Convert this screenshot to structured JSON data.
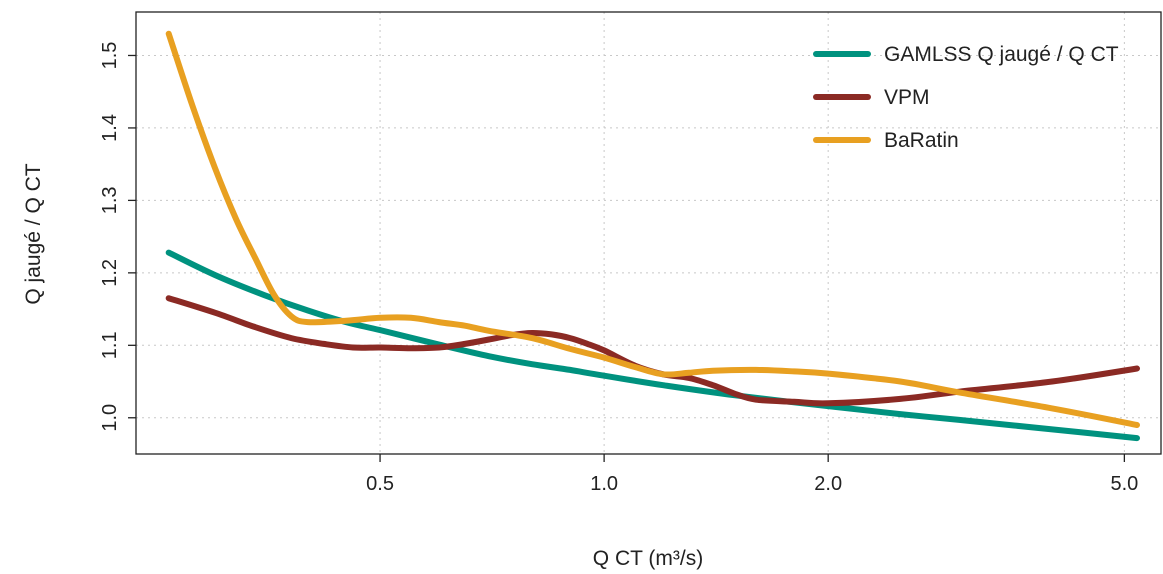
{
  "chart_data": {
    "type": "line",
    "xlabel": "Q CT (m³/s)",
    "ylabel": "Q jaugé / Q CT",
    "xscale": "log",
    "xlim": [
      0.235,
      5.6
    ],
    "ylim": [
      0.95,
      1.56
    ],
    "xticks": [
      0.5,
      1.0,
      2.0,
      5.0
    ],
    "xtick_labels": [
      "0.5",
      "1.0",
      "2.0",
      "5.0"
    ],
    "yticks": [
      1.0,
      1.1,
      1.2,
      1.3,
      1.4,
      1.5
    ],
    "ytick_labels": [
      "1.0",
      "1.1",
      "1.2",
      "1.3",
      "1.4",
      "1.5"
    ],
    "grid": true,
    "legend_position": "top-right",
    "series": [
      {
        "name": "GAMLSS Q jaugé / Q CT",
        "color": "#00927f",
        "x": [
          0.26,
          0.3,
          0.35,
          0.4,
          0.45,
          0.5,
          0.6,
          0.7,
          0.8,
          0.9,
          1.0,
          1.2,
          1.5,
          2.0,
          2.5,
          3.0,
          4.0,
          5.2
        ],
        "y": [
          1.228,
          1.197,
          1.169,
          1.148,
          1.132,
          1.121,
          1.101,
          1.085,
          1.074,
          1.066,
          1.058,
          1.045,
          1.031,
          1.016,
          1.005,
          0.997,
          0.984,
          0.972
        ]
      },
      {
        "name": "VPM",
        "color": "#8b2a24",
        "x": [
          0.26,
          0.3,
          0.34,
          0.38,
          0.42,
          0.46,
          0.5,
          0.55,
          0.6,
          0.65,
          0.7,
          0.75,
          0.8,
          0.85,
          0.9,
          0.95,
          1.0,
          1.1,
          1.2,
          1.3,
          1.4,
          1.5,
          1.6,
          1.8,
          2.0,
          2.5,
          3.0,
          4.0,
          5.2
        ],
        "y": [
          1.165,
          1.145,
          1.125,
          1.11,
          1.102,
          1.097,
          1.097,
          1.096,
          1.097,
          1.102,
          1.108,
          1.114,
          1.117,
          1.115,
          1.11,
          1.102,
          1.093,
          1.072,
          1.06,
          1.055,
          1.045,
          1.033,
          1.025,
          1.022,
          1.02,
          1.026,
          1.036,
          1.05,
          1.068
        ]
      },
      {
        "name": "BaRatin",
        "color": "#e8a021",
        "x": [
          0.26,
          0.28,
          0.3,
          0.32,
          0.34,
          0.36,
          0.38,
          0.4,
          0.45,
          0.5,
          0.55,
          0.6,
          0.65,
          0.7,
          0.8,
          0.9,
          1.0,
          1.1,
          1.2,
          1.3,
          1.4,
          1.6,
          1.8,
          2.0,
          2.5,
          3.0,
          4.0,
          5.2
        ],
        "y": [
          1.53,
          1.43,
          1.345,
          1.275,
          1.22,
          1.17,
          1.14,
          1.132,
          1.134,
          1.138,
          1.138,
          1.132,
          1.127,
          1.12,
          1.11,
          1.095,
          1.083,
          1.07,
          1.06,
          1.062,
          1.065,
          1.066,
          1.064,
          1.061,
          1.05,
          1.035,
          1.013,
          0.99
        ]
      }
    ]
  }
}
